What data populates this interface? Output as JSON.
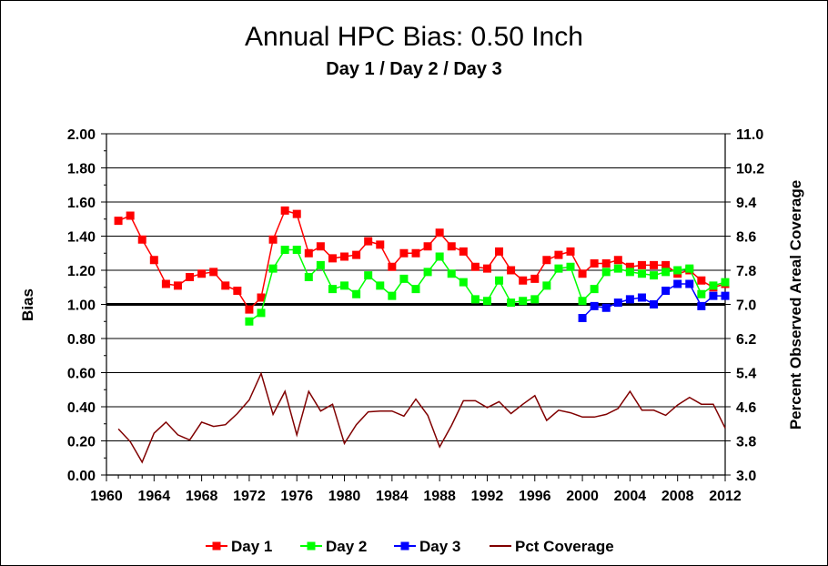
{
  "chart_data": {
    "type": "line",
    "title": "Annual HPC Bias:  0.50 Inch",
    "subtitle": "Day 1 / Day 2 / Day 3",
    "ylabel": "Bias",
    "y2label": "Percent Observed Areal Coverage",
    "xlim": [
      1960,
      2012
    ],
    "ylim": [
      0,
      2.0
    ],
    "y2lim": [
      3.0,
      11.0
    ],
    "x_ticks": [
      "1960",
      "1964",
      "1968",
      "1972",
      "1976",
      "1980",
      "1984",
      "1988",
      "1992",
      "1996",
      "2000",
      "2004",
      "2008",
      "2012"
    ],
    "y_ticks": [
      "0.00",
      "0.20",
      "0.40",
      "0.60",
      "0.80",
      "1.00",
      "1.20",
      "1.40",
      "1.60",
      "1.80",
      "2.00"
    ],
    "y2_ticks": [
      "3.0",
      "3.8",
      "4.6",
      "5.4",
      "6.2",
      "7.0",
      "7.8",
      "8.6",
      "9.4",
      "10.2",
      "11.0"
    ],
    "reference_line": 1.0,
    "grid": "horizontal",
    "legend_position": "bottom",
    "series": [
      {
        "name": "Day 1",
        "color": "#ff0000",
        "axis": "left",
        "marker": "square",
        "x": [
          1961,
          1962,
          1963,
          1964,
          1965,
          1966,
          1967,
          1968,
          1969,
          1970,
          1971,
          1972,
          1973,
          1974,
          1975,
          1976,
          1977,
          1978,
          1979,
          1980,
          1981,
          1982,
          1983,
          1984,
          1985,
          1986,
          1987,
          1988,
          1989,
          1990,
          1991,
          1992,
          1993,
          1994,
          1995,
          1996,
          1997,
          1998,
          1999,
          2000,
          2001,
          2002,
          2003,
          2004,
          2005,
          2006,
          2007,
          2008,
          2009,
          2010,
          2011,
          2012
        ],
        "values": [
          1.49,
          1.52,
          1.38,
          1.26,
          1.12,
          1.11,
          1.16,
          1.18,
          1.19,
          1.11,
          1.08,
          0.97,
          1.04,
          1.38,
          1.55,
          1.53,
          1.3,
          1.34,
          1.27,
          1.28,
          1.29,
          1.37,
          1.35,
          1.22,
          1.3,
          1.3,
          1.34,
          1.42,
          1.34,
          1.31,
          1.22,
          1.21,
          1.31,
          1.2,
          1.14,
          1.15,
          1.26,
          1.29,
          1.31,
          1.18,
          1.24,
          1.24,
          1.26,
          1.22,
          1.23,
          1.23,
          1.23,
          1.18,
          1.2,
          1.14,
          1.1,
          1.12
        ]
      },
      {
        "name": "Day 2",
        "color": "#00ff00",
        "axis": "left",
        "marker": "square",
        "x": [
          1972,
          1973,
          1974,
          1975,
          1976,
          1977,
          1978,
          1979,
          1980,
          1981,
          1982,
          1983,
          1984,
          1985,
          1986,
          1987,
          1988,
          1989,
          1990,
          1991,
          1992,
          1993,
          1994,
          1995,
          1996,
          1997,
          1998,
          1999,
          2000,
          2001,
          2002,
          2003,
          2004,
          2005,
          2006,
          2007,
          2008,
          2009,
          2010,
          2011,
          2012
        ],
        "values": [
          0.9,
          0.95,
          1.21,
          1.32,
          1.32,
          1.16,
          1.23,
          1.09,
          1.11,
          1.06,
          1.17,
          1.11,
          1.05,
          1.15,
          1.09,
          1.19,
          1.28,
          1.18,
          1.13,
          1.03,
          1.02,
          1.14,
          1.01,
          1.02,
          1.03,
          1.11,
          1.21,
          1.22,
          1.02,
          1.09,
          1.19,
          1.21,
          1.19,
          1.18,
          1.17,
          1.19,
          1.2,
          1.21,
          1.06,
          1.11,
          1.13
        ]
      },
      {
        "name": "Day 3",
        "color": "#0000ff",
        "axis": "left",
        "marker": "square",
        "x": [
          2000,
          2001,
          2002,
          2003,
          2004,
          2005,
          2006,
          2007,
          2008,
          2009,
          2010,
          2011,
          2012
        ],
        "values": [
          0.92,
          0.99,
          0.98,
          1.01,
          1.03,
          1.04,
          1.0,
          1.08,
          1.12,
          1.12,
          0.99,
          1.05,
          1.05
        ]
      },
      {
        "name": "Pct Coverage",
        "color": "#800000",
        "axis": "right",
        "marker": "none",
        "x": [
          1961,
          1962,
          1963,
          1964,
          1965,
          1966,
          1967,
          1968,
          1969,
          1970,
          1971,
          1972,
          1973,
          1974,
          1975,
          1976,
          1977,
          1978,
          1979,
          1980,
          1981,
          1982,
          1983,
          1984,
          1985,
          1986,
          1987,
          1988,
          1989,
          1990,
          1991,
          1992,
          1993,
          1994,
          1995,
          1996,
          1997,
          1998,
          1999,
          2000,
          2001,
          2002,
          2003,
          2004,
          2005,
          2006,
          2007,
          2008,
          2009,
          2010,
          2011,
          2012
        ],
        "values": [
          4.08,
          3.78,
          3.3,
          3.98,
          4.24,
          3.94,
          3.82,
          4.24,
          4.14,
          4.18,
          4.44,
          4.76,
          5.38,
          4.42,
          4.96,
          3.94,
          4.96,
          4.5,
          4.66,
          3.74,
          4.18,
          4.48,
          4.5,
          4.5,
          4.38,
          4.78,
          4.4,
          3.66,
          4.16,
          4.74,
          4.74,
          4.58,
          4.72,
          4.44,
          4.66,
          4.86,
          4.28,
          4.52,
          4.46,
          4.36,
          4.36,
          4.42,
          4.56,
          4.96,
          4.52,
          4.52,
          4.4,
          4.64,
          4.82,
          4.66,
          4.66,
          4.1
        ]
      }
    ]
  }
}
